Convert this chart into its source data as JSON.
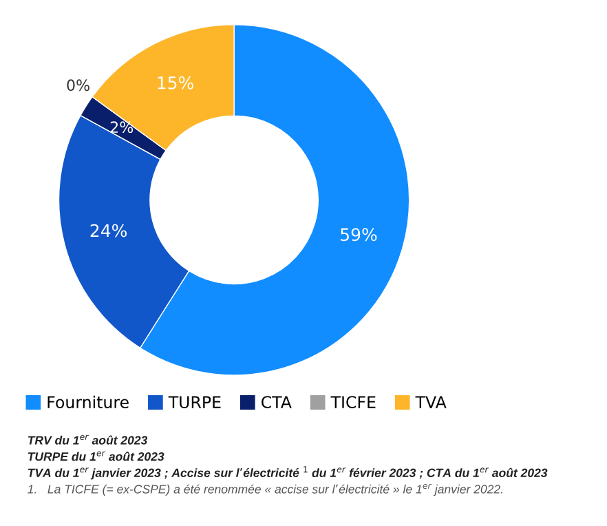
{
  "chart_data": {
    "type": "donut",
    "categories": [
      "Fourniture",
      "TURPE",
      "CTA",
      "TICFE",
      "TVA"
    ],
    "values": [
      59,
      24,
      2,
      0,
      15
    ],
    "value_labels": [
      "59%",
      "24%",
      "2%",
      "0%",
      "15%"
    ],
    "colors": [
      "#118dff",
      "#1157c9",
      "#0a1f6b",
      "#a0a0a0",
      "#fdb52a"
    ],
    "legend": "bottom",
    "annotations": [
      "TRV du 1$^{er}$ août 2023",
      "TURPE du 1$^{er}$ août 2023",
      "TVA du 1$^{er}$ janvier 2023 ; Accise sur l’électricité $^{1}$ du 1$^{er}$ février 2023 ; CTA du 1$^{er}$ août 2023",
      "1.   La TICFE (= ex-CSPE) a été renommée « accise sur l’électricité » le 1$^{er}$ janvier 2022."
    ]
  }
}
